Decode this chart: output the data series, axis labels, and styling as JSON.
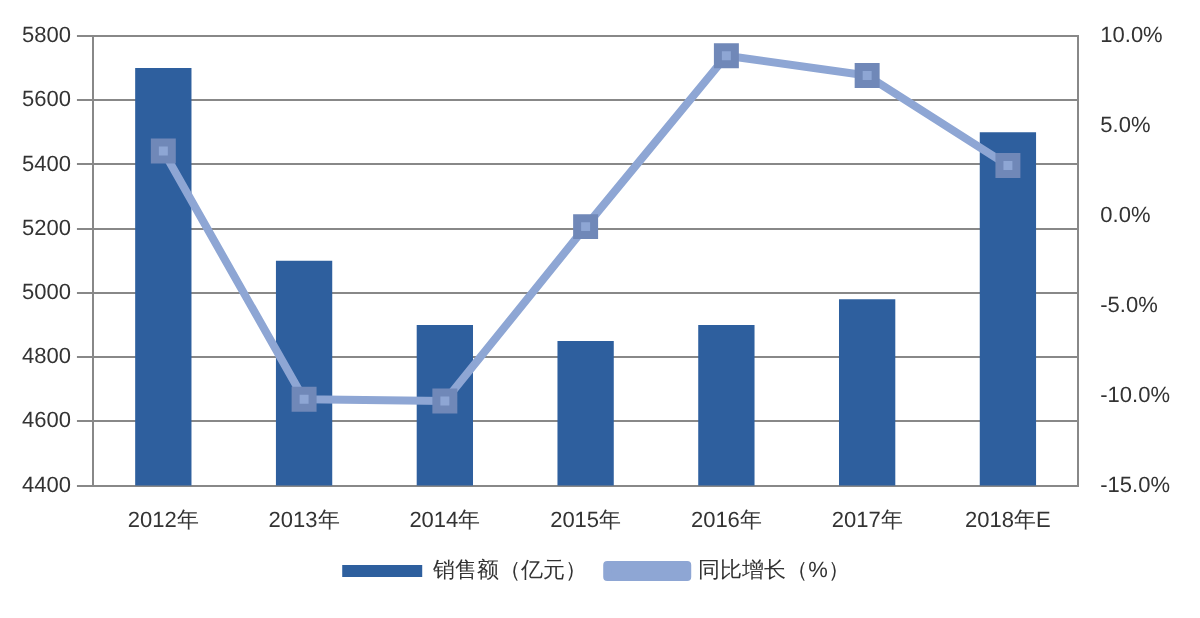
{
  "chart_data": {
    "type": "bar",
    "categories": [
      "2012年",
      "2013年",
      "2014年",
      "2015年",
      "2016年",
      "2017年",
      "2018年E"
    ],
    "series": [
      {
        "name": "销售额（亿元）",
        "color": "#2e5f9e",
        "values": [
          5700,
          5100,
          4900,
          4850,
          4900,
          4980,
          5500
        ]
      },
      {
        "name": "同比增长（%）",
        "type": "line",
        "axis": "y2",
        "color": "#8ea6d4",
        "marker": "square",
        "values": [
          3.6,
          -10.2,
          -10.3,
          -0.6,
          8.9,
          7.8,
          2.8
        ]
      }
    ],
    "ylim": [
      4400,
      5800
    ],
    "yticks": [
      4400,
      4600,
      4800,
      5000,
      5200,
      5400,
      5600,
      5800
    ],
    "y2lim": [
      -15,
      10
    ],
    "y2ticks": [
      {
        "value": -15,
        "label": "-15.0%"
      },
      {
        "value": -10,
        "label": "-10.0%"
      },
      {
        "value": -5,
        "label": "-5.0%"
      },
      {
        "value": 0,
        "label": "0.0%"
      },
      {
        "value": 5,
        "label": "5.0%"
      },
      {
        "value": 10,
        "label": "10.0%"
      }
    ],
    "grid": "y",
    "legend": "bottom"
  }
}
